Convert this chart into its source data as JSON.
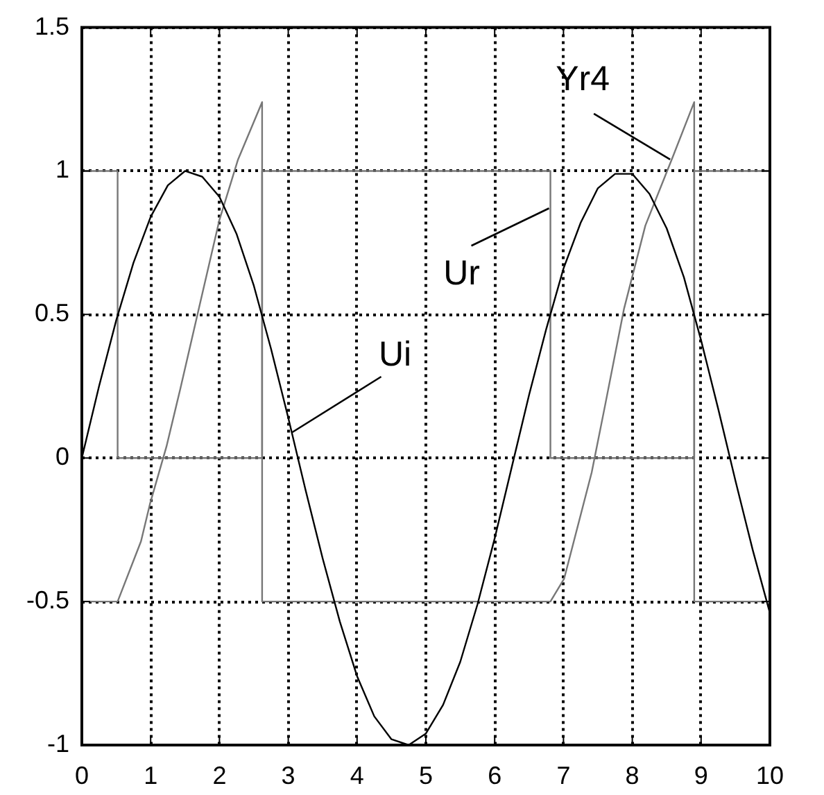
{
  "chart_data": {
    "type": "line",
    "xlim": [
      0,
      10
    ],
    "xticks": [
      0,
      1,
      2,
      3,
      4,
      5,
      6,
      7,
      8,
      9,
      10
    ],
    "ylim": [
      -1,
      1.5
    ],
    "yticks": [
      -1,
      -0.5,
      0,
      0.5,
      1,
      1.5
    ],
    "grid": true,
    "legend": false,
    "marker": "none",
    "line_style": "solid",
    "series": [
      {
        "color": "#000000",
        "x": [
          0,
          0.25,
          0.5,
          0.75,
          1,
          1.25,
          1.5,
          1.75,
          2,
          2.25,
          2.5,
          2.75,
          3,
          3.25,
          3.5,
          3.75,
          4,
          4.25,
          4.5,
          4.75,
          5,
          5.25,
          5.5,
          5.75,
          6,
          6.25,
          6.5,
          6.75,
          7,
          7.25,
          7.5,
          7.75,
          8,
          8.25,
          8.5,
          8.75,
          9,
          9.25,
          9.5,
          9.75,
          10
        ],
        "values": [
          0,
          0.25,
          0.48,
          0.68,
          0.84,
          0.95,
          1.0,
          0.98,
          0.91,
          0.78,
          0.6,
          0.38,
          0.14,
          -0.11,
          -0.35,
          -0.57,
          -0.76,
          -0.9,
          -0.98,
          -1.0,
          -0.96,
          -0.86,
          -0.71,
          -0.51,
          -0.28,
          -0.03,
          0.22,
          0.45,
          0.66,
          0.82,
          0.94,
          0.99,
          0.99,
          0.92,
          0.8,
          0.63,
          0.41,
          0.17,
          -0.08,
          -0.32,
          -0.54
        ]
      },
      {
        "color": "#777777",
        "x": [
          0,
          0.52,
          0.52,
          2.62,
          2.62,
          6.81,
          6.81,
          8.9,
          8.9,
          10
        ],
        "values": [
          1,
          1,
          0,
          0,
          1,
          1,
          0,
          0,
          1,
          1
        ]
      },
      {
        "color": "#777777",
        "x": [
          0,
          0.52,
          0.86,
          0.99,
          1.23,
          1.43,
          1.7,
          2.0,
          2.27,
          2.62,
          2.62,
          6.81,
          7.01,
          7.41,
          7.61,
          7.88,
          8.19,
          8.59,
          8.9,
          8.9,
          10
        ],
        "values": [
          -0.5,
          -0.5,
          -0.29,
          -0.16,
          0.04,
          0.24,
          0.52,
          0.83,
          1.04,
          1.24,
          -0.5,
          -0.5,
          -0.42,
          -0.05,
          0.19,
          0.52,
          0.81,
          1.05,
          1.24,
          -0.5,
          -0.5
        ]
      }
    ],
    "annotations": [
      {
        "text": "Ui",
        "x": 3.06,
        "y": 0.09
      },
      {
        "text": "Ur",
        "x": 6.79,
        "y": 0.87
      },
      {
        "text": "Yr4",
        "x": 8.55,
        "y": 1.04
      }
    ]
  }
}
